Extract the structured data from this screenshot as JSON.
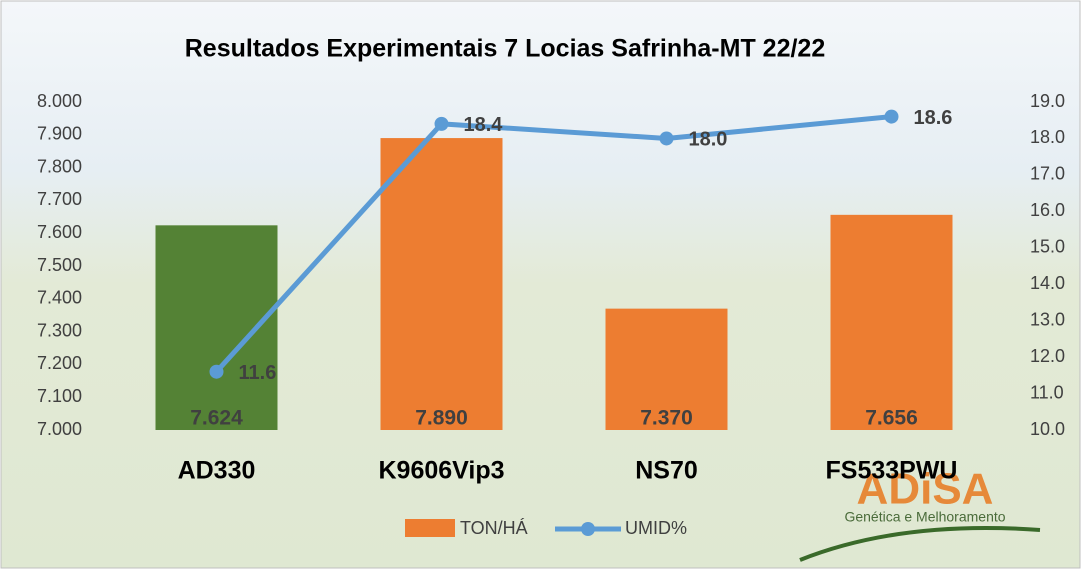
{
  "chart_data": {
    "type": "bar_line",
    "title": "Resultados Experimentais 7 Locias Safrinha-MT 22/22",
    "categories": [
      "AD330",
      "K9606Vip3",
      "NS70",
      "FS533PWU"
    ],
    "series": [
      {
        "name": "TON/HÁ",
        "type": "bar",
        "color": "#ed7d31",
        "colors": [
          "#548235",
          "#ed7d31",
          "#ed7d31",
          "#ed7d31"
        ],
        "values": [
          7.624,
          7.89,
          7.37,
          7.656
        ],
        "value_labels": [
          "7.624",
          "7.890",
          "7.370",
          "7.656"
        ]
      },
      {
        "name": "UMID%",
        "type": "line",
        "axis": "y2",
        "color": "#5b9bd5",
        "values": [
          11.6,
          18.4,
          18.0,
          18.6
        ],
        "value_labels": [
          "11.6",
          "18.4",
          "18.0",
          "18.6"
        ]
      }
    ],
    "ylim": [
      7,
      8
    ],
    "yticks": [
      {
        "value": 7,
        "label": "7.000"
      },
      {
        "value": 7.1,
        "label": "7.100"
      },
      {
        "value": 7.2,
        "label": "7.200"
      },
      {
        "value": 7.3,
        "label": "7.300"
      },
      {
        "value": 7.4,
        "label": "7.400"
      },
      {
        "value": 7.5,
        "label": "7.500"
      },
      {
        "value": 7.6,
        "label": "7.600"
      },
      {
        "value": 7.7,
        "label": "7.700"
      },
      {
        "value": 7.8,
        "label": "7.800"
      },
      {
        "value": 7.9,
        "label": "7.900"
      },
      {
        "value": 8,
        "label": "8.000"
      }
    ],
    "y2lim": [
      10,
      19
    ],
    "y2ticks": [
      {
        "value": 10,
        "label": "10.0"
      },
      {
        "value": 11,
        "label": "11.0"
      },
      {
        "value": 12,
        "label": "12.0"
      },
      {
        "value": 13,
        "label": "13.0"
      },
      {
        "value": 14,
        "label": "14.0"
      },
      {
        "value": 15,
        "label": "15.0"
      },
      {
        "value": 16,
        "label": "16.0"
      },
      {
        "value": 17,
        "label": "17.0"
      },
      {
        "value": 18,
        "label": "18.0"
      },
      {
        "value": 19,
        "label": "19.0"
      }
    ],
    "legend": "bottom",
    "logo": {
      "name": "ADiSA",
      "tagline": "Genética e Melhoramento"
    }
  }
}
